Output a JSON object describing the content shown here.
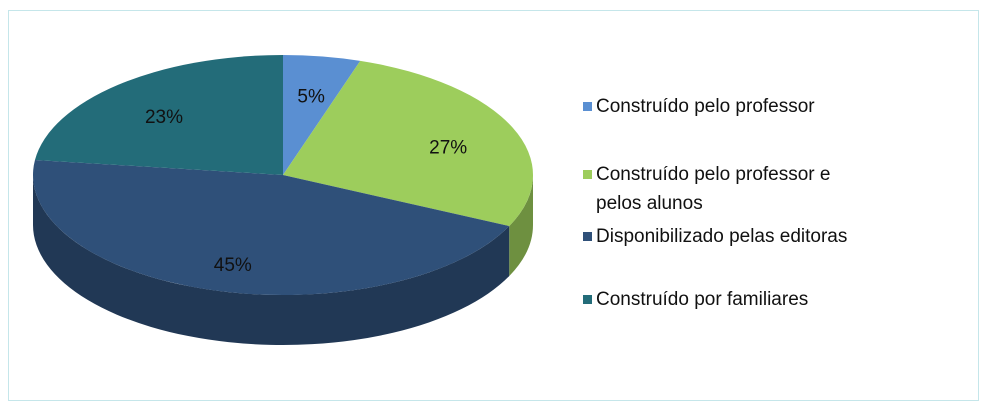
{
  "chart_data": {
    "type": "pie",
    "categories": [
      "Construído pelo professor",
      "Construído pelo professor e pelos alunos",
      "Disponibilizado pelas editoras",
      "Construído por familiares"
    ],
    "values": [
      5,
      27,
      45,
      23
    ],
    "value_labels": [
      "5%",
      "27%",
      "45%",
      "23%"
    ],
    "colors": [
      "#5a8fd2",
      "#9dcd5c",
      "#2f5079",
      "#236c79"
    ],
    "legend": "right"
  }
}
